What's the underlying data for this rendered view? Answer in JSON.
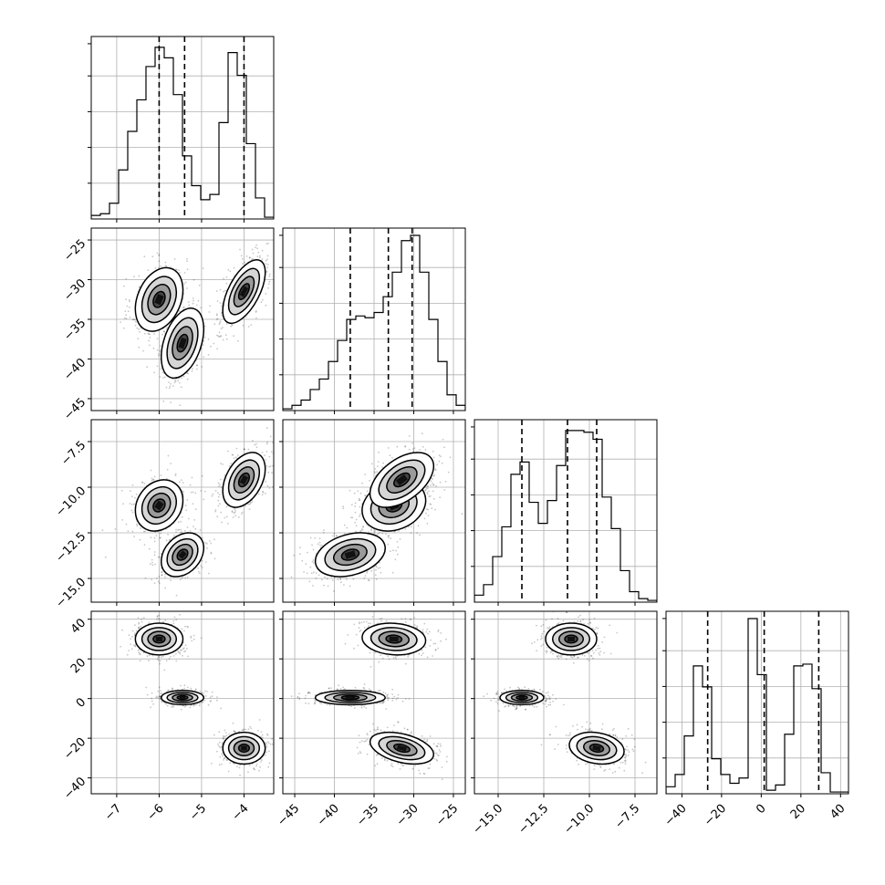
{
  "chart_data": {
    "type": "corner",
    "title": "",
    "grid": true,
    "params": [
      {
        "range": [
          -7.6,
          -3.3
        ],
        "ticks": [
          -7,
          -6,
          -5,
          -4
        ],
        "tick_labels": [
          "−7",
          "−6",
          "−5",
          "−4"
        ],
        "peaks": [
          {
            "c": -6.0,
            "s": 0.28,
            "w": 1.0
          },
          {
            "c": -5.45,
            "s": 0.25,
            "w": 1.0
          },
          {
            "c": -4.0,
            "s": 0.25,
            "w": 1.0
          }
        ],
        "quantiles": [
          -6.0,
          -5.4,
          -4.0
        ]
      },
      {
        "range": [
          -46.5,
          -23.5
        ],
        "ticks": [
          -45,
          -40,
          -35,
          -30,
          -25
        ],
        "tick_labels": [
          "−45",
          "−40",
          "−35",
          "−30",
          "−25"
        ],
        "peaks": [
          {
            "c": -32.5,
            "s": 2.0,
            "w": 1.0
          },
          {
            "c": -38.0,
            "s": 2.2,
            "w": 1.0
          },
          {
            "c": -31.5,
            "s": 2.0,
            "w": 1.0
          }
        ],
        "quantiles": [
          -38.0,
          -33.2,
          -30.2
        ]
      },
      {
        "range": [
          -16.3,
          -6.3
        ],
        "ticks": [
          -15.0,
          -12.5,
          -10.0,
          -7.5
        ],
        "tick_labels": [
          "−15.0",
          "−12.5",
          "−10.0",
          "−7.5"
        ],
        "peaks": [
          {
            "c": -11.0,
            "s": 0.7,
            "w": 1.0
          },
          {
            "c": -13.7,
            "s": 0.6,
            "w": 1.0
          },
          {
            "c": -9.6,
            "s": 0.75,
            "w": 1.0
          }
        ],
        "quantiles": [
          -13.7,
          -11.2,
          -9.6
        ]
      },
      {
        "range": [
          -48,
          44
        ],
        "ticks": [
          -40,
          -20,
          0,
          20,
          40
        ],
        "tick_labels": [
          "−40",
          "−20",
          "0",
          "20",
          "40"
        ],
        "peaks": [
          {
            "c": 30.0,
            "s": 4.0,
            "w": 1.0
          },
          {
            "c": 0.5,
            "s": 1.8,
            "w": 1.0
          },
          {
            "c": -25.0,
            "s": 4.0,
            "w": 1.0
          }
        ],
        "quantiles": [
          -27.0,
          1.5,
          29.0
        ]
      }
    ],
    "clusters": [
      {
        "rho": {
          "0_1": 0.3,
          "0_2": 0.2,
          "1_2": 0.2,
          "0_3": 0.0,
          "1_3": -0.1,
          "2_3": 0.0
        }
      },
      {
        "rho": {
          "0_1": 0.4,
          "0_2": 0.3,
          "1_2": 0.3,
          "0_3": 0.0,
          "1_3": 0.0,
          "2_3": 0.0
        }
      },
      {
        "rho": {
          "0_1": 0.6,
          "0_2": 0.4,
          "1_2": 0.5,
          "0_3": 0.0,
          "1_3": -0.4,
          "2_3": -0.2
        }
      }
    ],
    "hist_bins": 20,
    "hist_heights": [
      [
        0.02,
        0.03,
        0.09,
        0.28,
        0.5,
        0.68,
        0.87,
        0.98,
        0.92,
        0.71,
        0.36,
        0.19,
        0.11,
        0.14,
        0.55,
        0.95,
        0.82,
        0.43,
        0.12,
        0.01
      ],
      [
        0.01,
        0.03,
        0.06,
        0.12,
        0.18,
        0.28,
        0.4,
        0.52,
        0.54,
        0.53,
        0.56,
        0.65,
        0.79,
        0.97,
        1.0,
        0.79,
        0.52,
        0.28,
        0.09,
        0.03
      ],
      [
        0.04,
        0.1,
        0.26,
        0.43,
        0.73,
        0.8,
        0.57,
        0.45,
        0.58,
        0.78,
        0.98,
        0.98,
        0.97,
        0.93,
        0.6,
        0.42,
        0.18,
        0.06,
        0.02,
        0.01
      ],
      [
        0.04,
        0.11,
        0.33,
        0.73,
        0.61,
        0.2,
        0.11,
        0.06,
        0.09,
        1.0,
        0.68,
        0.02,
        0.05,
        0.34,
        0.73,
        0.74,
        0.6,
        0.12,
        0.01,
        0.01
      ]
    ]
  }
}
